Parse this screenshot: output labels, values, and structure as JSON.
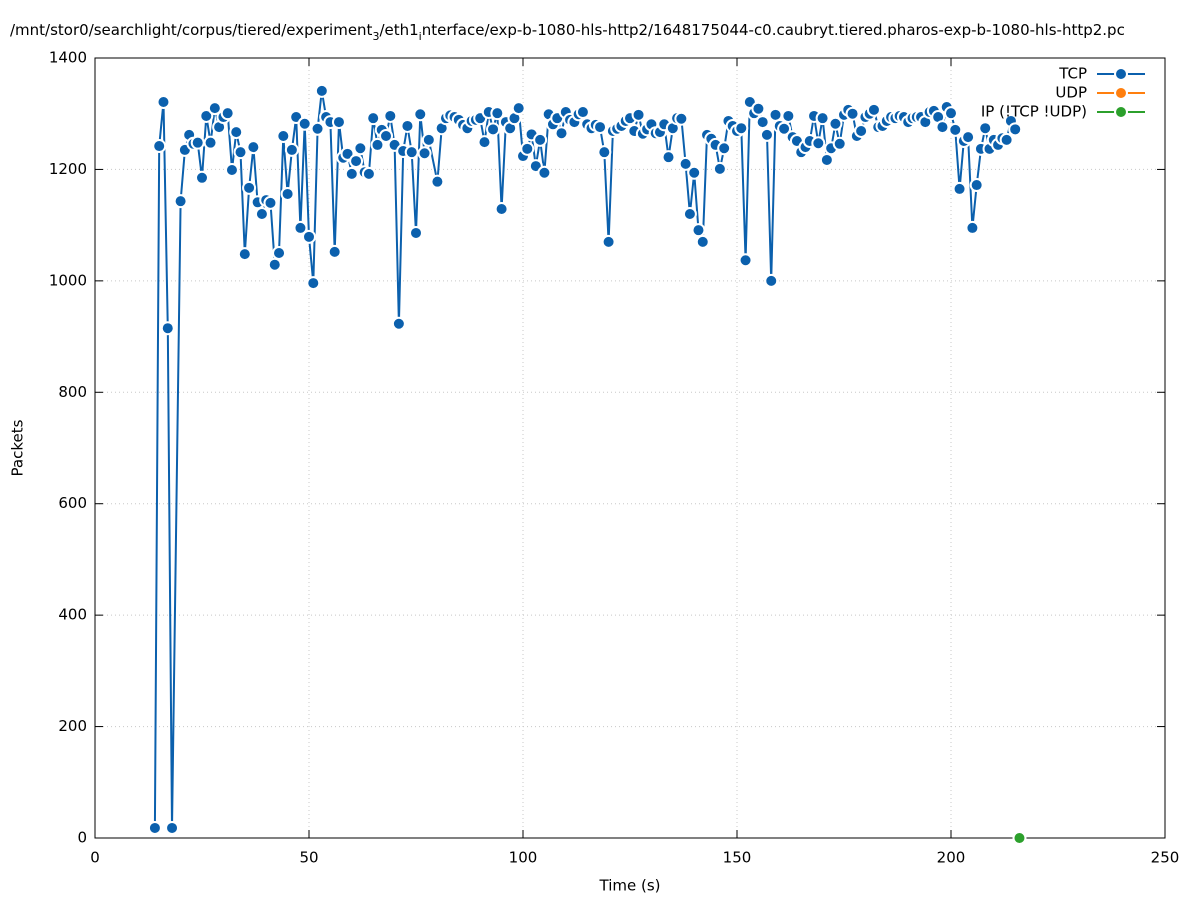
{
  "chart_data": {
    "type": "line",
    "title": [
      "/mnt/stor0/searchlight/corpus/tiered/experiment",
      "3",
      "/eth1",
      "i",
      "nterface/exp-b-1080-hls-http2/1648175044-c0.caubryt.tiered.pharos-exp-b-1080-hls-http2.pc"
    ],
    "xlabel": "Time (s)",
    "ylabel": "Packets",
    "xlim": [
      0,
      250
    ],
    "xticks": [
      0,
      50,
      100,
      150,
      200,
      250
    ],
    "ylim": [
      0,
      1400
    ],
    "yticks": [
      0,
      200,
      400,
      600,
      800,
      1000,
      1200,
      1400
    ],
    "grid": true,
    "legend": "top-right",
    "series": [
      {
        "name": "TCP",
        "color": "#0b60ad",
        "x": [
          14,
          15,
          16,
          17,
          18,
          20,
          21,
          22,
          23,
          24,
          25,
          26,
          27,
          28,
          29,
          30,
          31,
          32,
          33,
          34,
          35,
          36,
          37,
          38,
          39,
          40,
          41,
          42,
          43,
          44,
          45,
          46,
          47,
          48,
          49,
          50,
          51,
          52,
          53,
          54,
          55,
          56,
          57,
          58,
          59,
          60,
          61,
          62,
          63,
          64,
          65,
          66,
          67,
          68,
          69,
          70,
          71,
          72,
          73,
          74,
          75,
          76,
          77,
          78,
          80,
          81,
          82,
          83,
          84,
          85,
          86,
          87,
          88,
          89,
          90,
          91,
          92,
          93,
          94,
          95,
          96,
          97,
          98,
          99,
          100,
          101,
          102,
          103,
          104,
          105,
          106,
          107,
          108,
          109,
          110,
          111,
          112,
          113,
          114,
          115,
          116,
          117,
          118,
          119,
          120,
          121,
          122,
          123,
          124,
          125,
          126,
          127,
          128,
          129,
          130,
          131,
          132,
          133,
          134,
          135,
          136,
          137,
          138,
          139,
          140,
          141,
          142,
          143,
          144,
          145,
          146,
          147,
          148,
          149,
          150,
          151,
          152,
          153,
          154,
          155,
          156,
          157,
          158,
          159,
          160,
          161,
          162,
          163,
          164,
          165,
          166,
          167,
          168,
          169,
          170,
          171,
          172,
          173,
          174,
          175,
          176,
          177,
          178,
          179,
          180,
          181,
          182,
          183,
          184,
          185,
          186,
          187,
          188,
          189,
          190,
          191,
          192,
          193,
          194,
          195,
          196,
          197,
          198,
          199,
          200,
          201,
          202,
          203,
          204,
          205,
          206,
          207,
          208,
          209,
          210,
          211,
          212,
          213,
          214,
          215
        ],
        "values": [
          18,
          1242,
          1321,
          915,
          18,
          1143,
          1235,
          1262,
          1246,
          1248,
          1185,
          1296,
          1248,
          1310,
          1276,
          1294,
          1301,
          1199,
          1267,
          1231,
          1048,
          1167,
          1240,
          1141,
          1120,
          1145,
          1140,
          1029,
          1050,
          1260,
          1156,
          1235,
          1294,
          1095,
          1282,
          1079,
          996,
          1273,
          1341,
          1294,
          1285,
          1052,
          1285,
          1221,
          1228,
          1192,
          1215,
          1238,
          1195,
          1192,
          1292,
          1244,
          1271,
          1260,
          1296,
          1244,
          923,
          1233,
          1278,
          1231,
          1086,
          1299,
          1229,
          1253,
          1178,
          1274,
          1292,
          1297,
          1294,
          1289,
          1280,
          1274,
          1287,
          1289,
          1292,
          1249,
          1303,
          1272,
          1301,
          1129,
          1285,
          1274,
          1292,
          1310,
          1224,
          1237,
          1263,
          1206,
          1253,
          1194,
          1299,
          1281,
          1292,
          1265,
          1303,
          1289,
          1285,
          1299,
          1303,
          1281,
          1274,
          1280,
          1276,
          1231,
          1070,
          1269,
          1273,
          1278,
          1287,
          1292,
          1269,
          1298,
          1264,
          1272,
          1281,
          1265,
          1267,
          1281,
          1222,
          1274,
          1292,
          1291,
          1210,
          1120,
          1194,
          1091,
          1070,
          1262,
          1255,
          1244,
          1201,
          1238,
          1287,
          1278,
          1269,
          1274,
          1037,
          1321,
          1301,
          1309,
          1285,
          1262,
          1000,
          1298,
          1278,
          1273,
          1296,
          1258,
          1251,
          1231,
          1240,
          1251,
          1296,
          1247,
          1292,
          1217,
          1238,
          1282,
          1246,
          1298,
          1307,
          1300,
          1260,
          1269,
          1294,
          1300,
          1307,
          1276,
          1278,
          1287,
          1294,
          1292,
          1296,
          1294,
          1285,
          1292,
          1294,
          1294,
          1285,
          1303,
          1305,
          1294,
          1276,
          1312,
          1301,
          1271,
          1165,
          1251,
          1258,
          1095,
          1172,
          1237,
          1274,
          1237,
          1253,
          1244,
          1256,
          1253,
          1287,
          1272
        ]
      },
      {
        "name": "UDP",
        "color": "#ff7f0e",
        "x": [],
        "values": []
      },
      {
        "name": "IP (!TCP  !UDP)",
        "color": "#2ca02c",
        "x": [
          216
        ],
        "values": [
          0
        ]
      }
    ]
  }
}
